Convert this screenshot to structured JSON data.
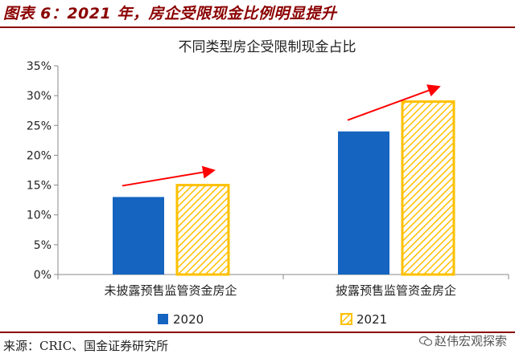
{
  "figure": {
    "caption": "图表 6：2021 年，房企受限现金比例明显提升",
    "source": "来源：CRIC、国金证券研究所",
    "watermark": "赵伟宏观探索"
  },
  "chart_data": {
    "type": "bar",
    "title": "不同类型房企受限制现金占比",
    "categories": [
      "未披露预售监管资金房企",
      "披露预售监管资金房企"
    ],
    "series": [
      {
        "name": "2020",
        "values": [
          13,
          24
        ],
        "color": "#1464C0",
        "pattern": "solid"
      },
      {
        "name": "2021",
        "values": [
          15,
          29
        ],
        "color": "#FFC000",
        "pattern": "hatched"
      }
    ],
    "xlabel": "",
    "ylabel": "",
    "ylim": [
      0,
      35
    ],
    "yticks": [
      "0%",
      "5%",
      "10%",
      "15%",
      "20%",
      "25%",
      "30%",
      "35%"
    ],
    "ytick_values": [
      0,
      5,
      10,
      15,
      20,
      25,
      30,
      35
    ],
    "grid": false,
    "legend_position": "bottom",
    "annotations": [
      {
        "type": "arrow",
        "color": "#FF0000",
        "group": 0
      },
      {
        "type": "arrow",
        "color": "#FF0000",
        "group": 1
      }
    ]
  }
}
